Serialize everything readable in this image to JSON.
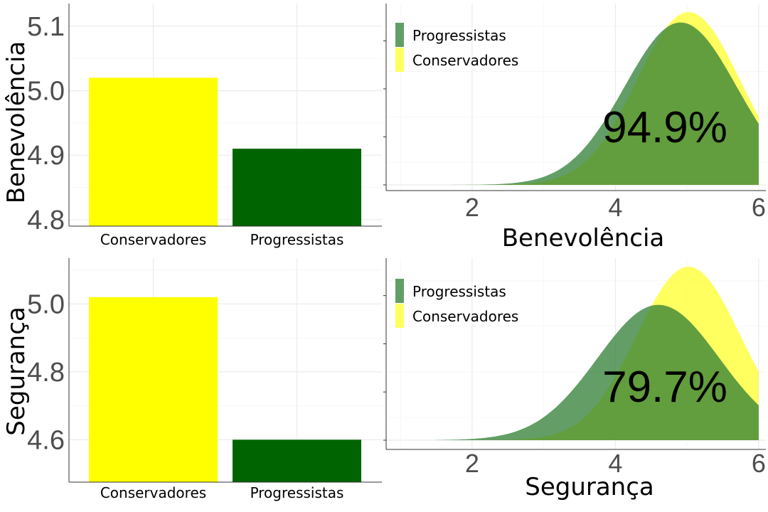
{
  "chart_data": [
    {
      "type": "bar",
      "panel": "top-left",
      "categories": [
        "Conservadores",
        "Progressistas"
      ],
      "values": [
        5.02,
        4.91
      ],
      "ylabel": "Benevolência",
      "ylim": [
        4.79,
        5.135
      ],
      "yticks": [
        4.8,
        4.9,
        5.0,
        5.1
      ],
      "ytick_labels": [
        "4.8",
        "4.9",
        "5.0",
        "5.1"
      ],
      "bar_colors": [
        "#ffff00",
        "#006400"
      ],
      "grid": true
    },
    {
      "type": "area",
      "panel": "top-right",
      "xlabel": "Benevolência",
      "xlim": [
        0.8,
        6.1
      ],
      "xticks": [
        2,
        4,
        6
      ],
      "xtick_labels": [
        "2",
        "4",
        "6"
      ],
      "x_range": [
        1.5,
        6
      ],
      "series": [
        {
          "name": "Progressistas",
          "color": "#2e7d32",
          "mean": 4.91,
          "sd": 0.78,
          "peak": 0.94
        },
        {
          "name": "Conservadores",
          "color": "#ffff33",
          "mean": 5.02,
          "sd": 0.72,
          "peak": 1.0
        }
      ],
      "legend_position": "top-left",
      "annotation": "94.9%",
      "grid": true
    },
    {
      "type": "bar",
      "panel": "bottom-left",
      "categories": [
        "Conservadores",
        "Progressistas"
      ],
      "values": [
        5.02,
        4.6
      ],
      "ylabel": "Segurança",
      "ylim": [
        4.475,
        5.135
      ],
      "yticks": [
        4.6,
        4.8,
        5.0
      ],
      "ytick_labels": [
        "4.6",
        "4.8",
        "5.0"
      ],
      "bar_colors": [
        "#ffff00",
        "#006400"
      ],
      "grid": true
    },
    {
      "type": "area",
      "panel": "bottom-right",
      "xlabel": "Segurança",
      "xlim": [
        0.8,
        6.1
      ],
      "xticks": [
        2,
        4,
        6
      ],
      "xtick_labels": [
        "2",
        "4",
        "6"
      ],
      "x_range": [
        1.5,
        6
      ],
      "series": [
        {
          "name": "Progressistas",
          "color": "#2e7d32",
          "mean": 4.6,
          "sd": 0.85,
          "peak": 0.78
        },
        {
          "name": "Conservadores",
          "color": "#ffff33",
          "mean": 5.02,
          "sd": 0.72,
          "peak": 1.0
        }
      ],
      "legend_position": "top-left",
      "annotation": "79.7%",
      "grid": true
    }
  ]
}
